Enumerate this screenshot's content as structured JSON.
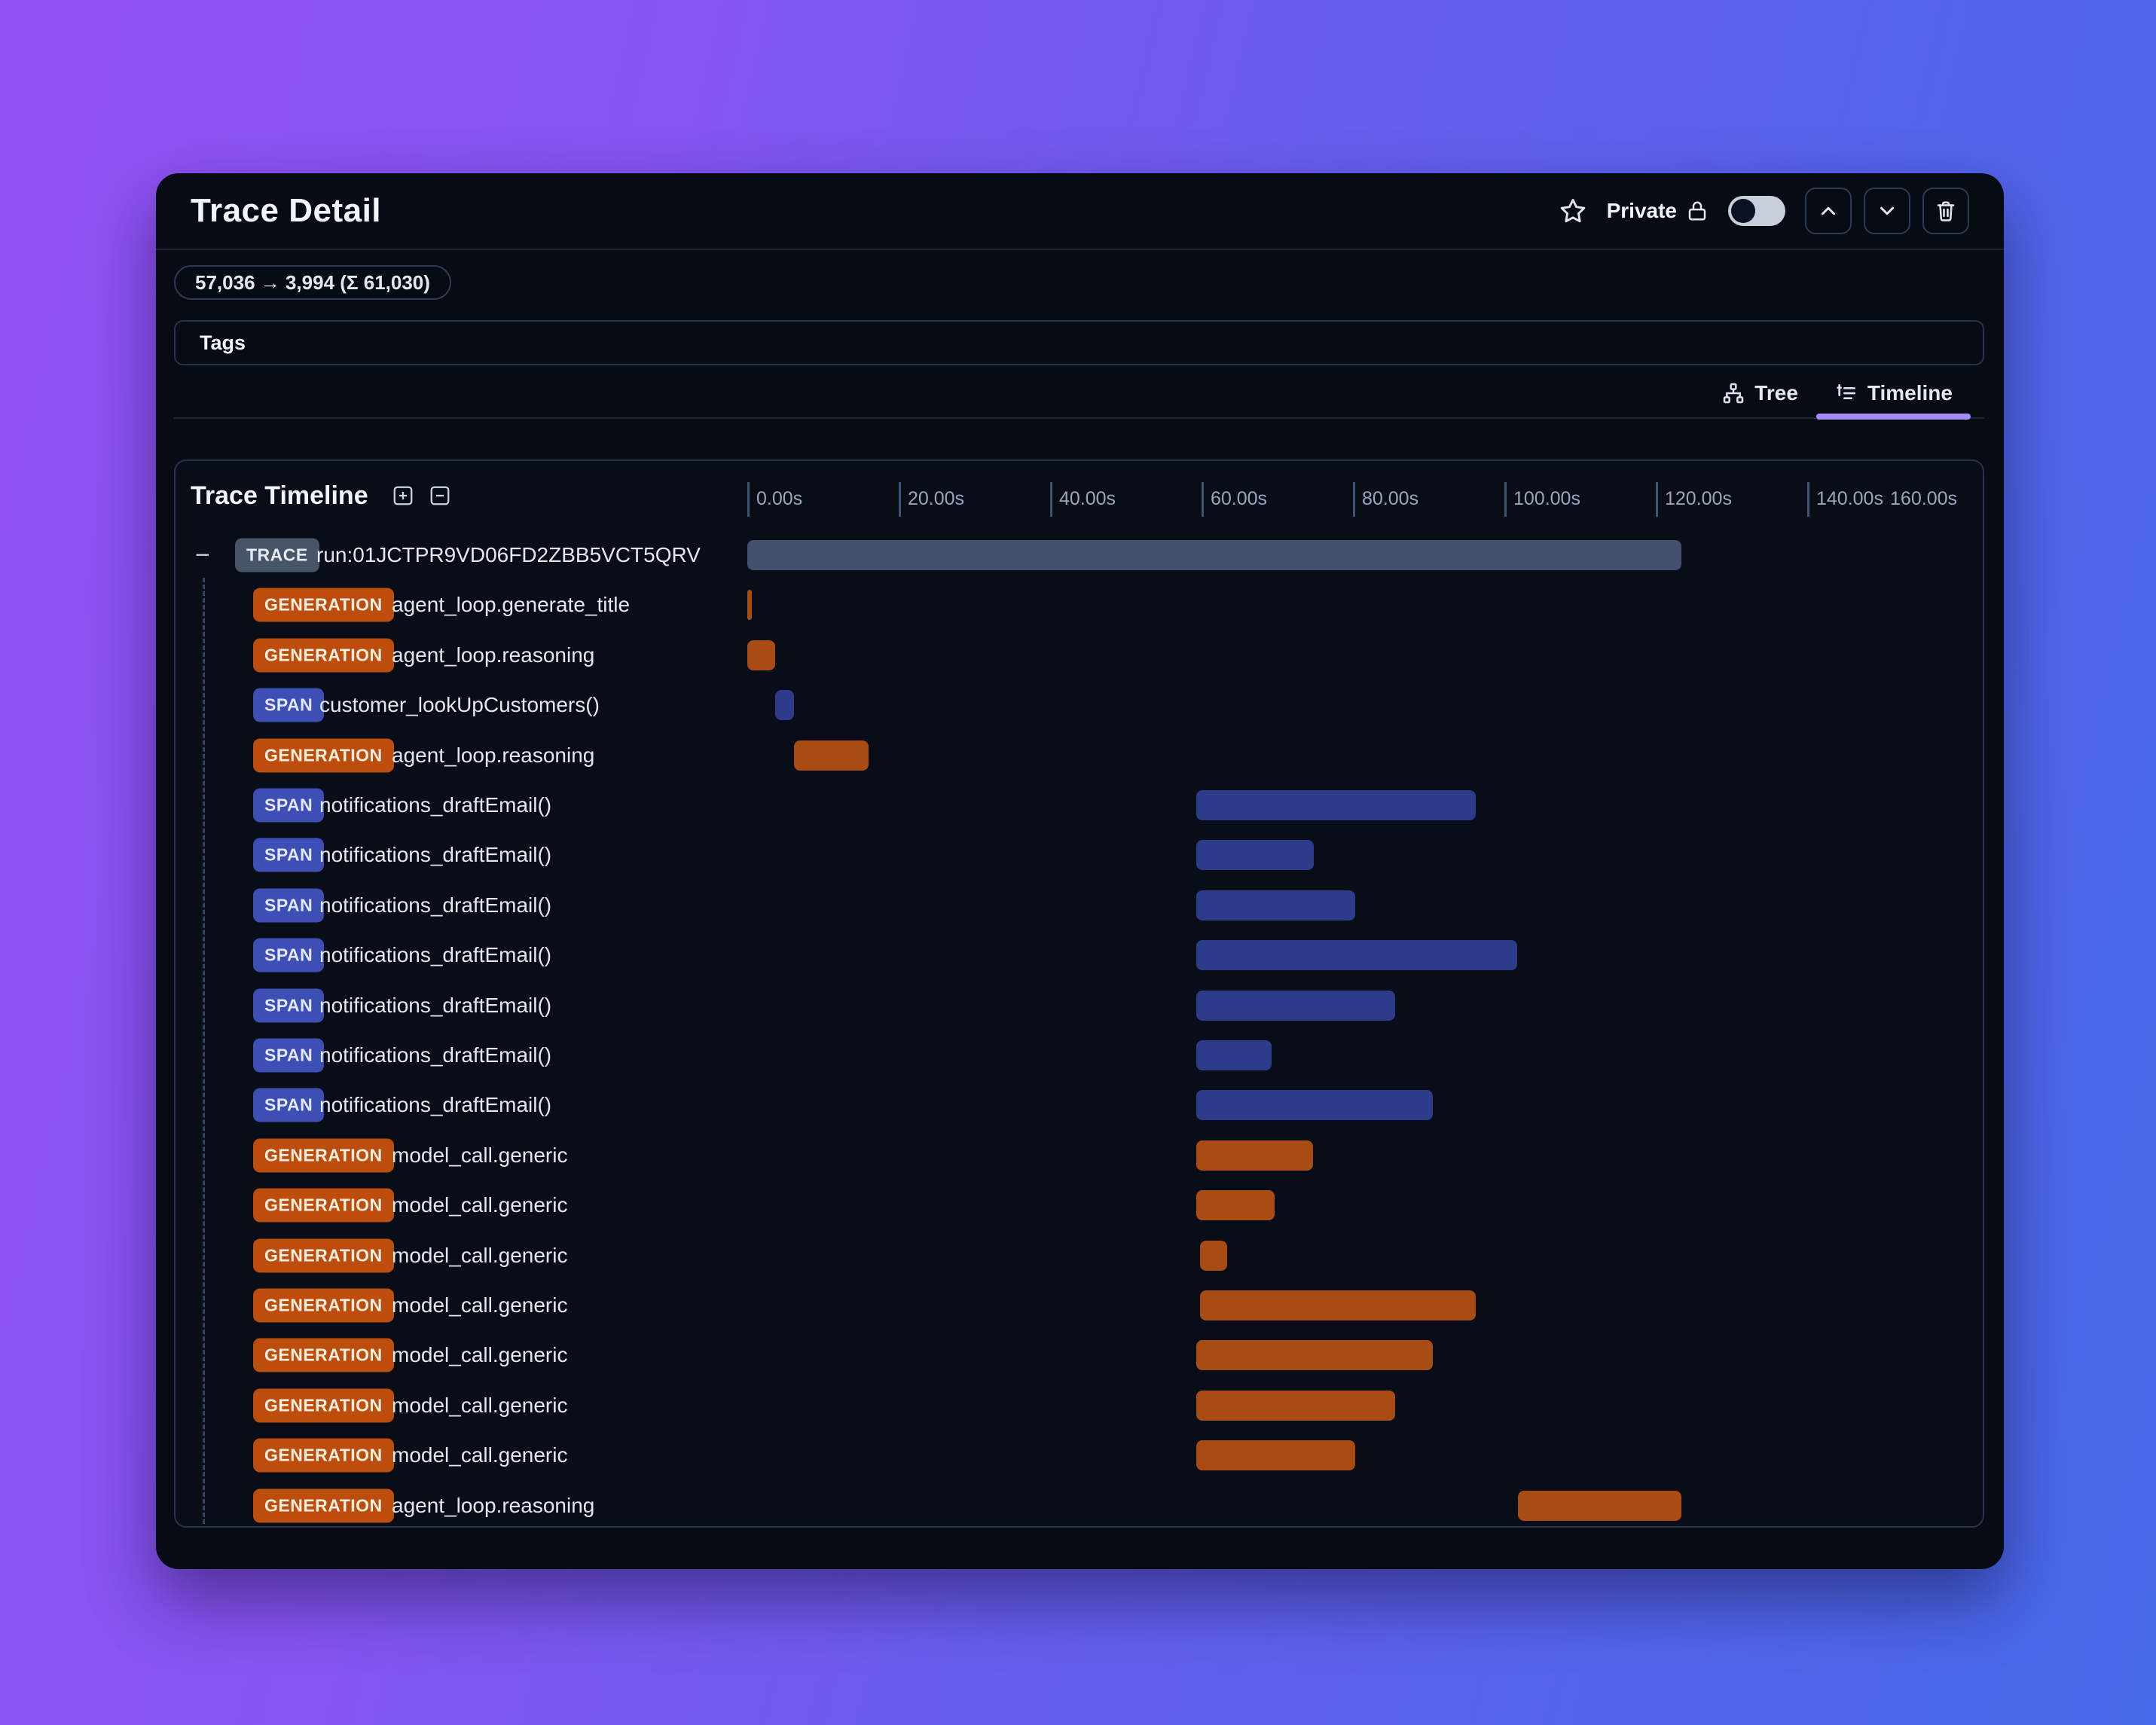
{
  "header": {
    "title": "Trace Detail",
    "privacy_label": "Private",
    "privacy_toggle_state": "off"
  },
  "token_usage": "57,036 → 3,994 (Σ 61,030)",
  "tags_label": "Tags",
  "view_tabs": [
    {
      "label": "Tree",
      "active": false
    },
    {
      "label": "Timeline",
      "active": true
    }
  ],
  "panel": {
    "title": "Trace Timeline"
  },
  "axis": {
    "tick_labels": [
      "0.00s",
      "20.00s",
      "40.00s",
      "60.00s",
      "80.00s",
      "100.00s",
      "120.00s",
      "140.00s"
    ],
    "end_label": "160.00s"
  },
  "icons": [
    "star-icon",
    "lock-icon",
    "chevron-up-icon",
    "chevron-down-icon",
    "trash-icon",
    "tree-icon",
    "list-tree-icon",
    "plus-square-icon",
    "minus-square-icon",
    "collapse-minus-icon"
  ],
  "colors": {
    "accent_purple": "#a78bfa",
    "trace_badge": "#475569",
    "trace_bar": "#41516d",
    "generation_badge": "#bd4d0c",
    "generation_bar": "#a94c13",
    "span_badge": "#3d4eb4",
    "span_bar": "#2c3c8a"
  },
  "chart_data": {
    "type": "bar",
    "subtype": "gantt-trace-timeline",
    "title": "Trace Timeline",
    "xlabel": "seconds",
    "x_ticks_s": [
      0,
      20,
      40,
      60,
      80,
      100,
      120,
      140,
      160
    ],
    "xlim": [
      0,
      163.2
    ],
    "rows": [
      {
        "kind": "TRACE",
        "label": "run:01JCTPR9VD06FD2ZBB5VCT5QRV",
        "start_s": 0,
        "end_s": 123.4,
        "collapsible": true
      },
      {
        "kind": "GENERATION",
        "label": "agent_loop.generate_title",
        "start_s": 0,
        "end_s": 0.6
      },
      {
        "kind": "GENERATION",
        "label": "agent_loop.reasoning",
        "start_s": 0,
        "end_s": 3.7
      },
      {
        "kind": "SPAN",
        "label": "customer_lookUpCustomers()",
        "start_s": 3.7,
        "end_s": 6.2
      },
      {
        "kind": "GENERATION",
        "label": "agent_loop.reasoning",
        "start_s": 6.2,
        "end_s": 16.0
      },
      {
        "kind": "SPAN",
        "label": "notifications_draftEmail()",
        "start_s": 59.3,
        "end_s": 96.2
      },
      {
        "kind": "SPAN",
        "label": "notifications_draftEmail()",
        "start_s": 59.3,
        "end_s": 74.8
      },
      {
        "kind": "SPAN",
        "label": "notifications_draftEmail()",
        "start_s": 59.3,
        "end_s": 80.3
      },
      {
        "kind": "SPAN",
        "label": "notifications_draftEmail()",
        "start_s": 59.3,
        "end_s": 101.7
      },
      {
        "kind": "SPAN",
        "label": "notifications_draftEmail()",
        "start_s": 59.3,
        "end_s": 85.6
      },
      {
        "kind": "SPAN",
        "label": "notifications_draftEmail()",
        "start_s": 59.3,
        "end_s": 69.3
      },
      {
        "kind": "SPAN",
        "label": "notifications_draftEmail()",
        "start_s": 59.3,
        "end_s": 90.5
      },
      {
        "kind": "GENERATION",
        "label": "model_call.generic",
        "start_s": 59.3,
        "end_s": 74.7
      },
      {
        "kind": "GENERATION",
        "label": "model_call.generic",
        "start_s": 59.3,
        "end_s": 69.7
      },
      {
        "kind": "GENERATION",
        "label": "model_call.generic",
        "start_s": 59.8,
        "end_s": 63.4
      },
      {
        "kind": "GENERATION",
        "label": "model_call.generic",
        "start_s": 59.8,
        "end_s": 96.2
      },
      {
        "kind": "GENERATION",
        "label": "model_call.generic",
        "start_s": 59.3,
        "end_s": 90.5
      },
      {
        "kind": "GENERATION",
        "label": "model_call.generic",
        "start_s": 59.3,
        "end_s": 85.6
      },
      {
        "kind": "GENERATION",
        "label": "model_call.generic",
        "start_s": 59.3,
        "end_s": 80.3
      },
      {
        "kind": "GENERATION",
        "label": "agent_loop.reasoning",
        "start_s": 101.8,
        "end_s": 123.4
      }
    ]
  }
}
